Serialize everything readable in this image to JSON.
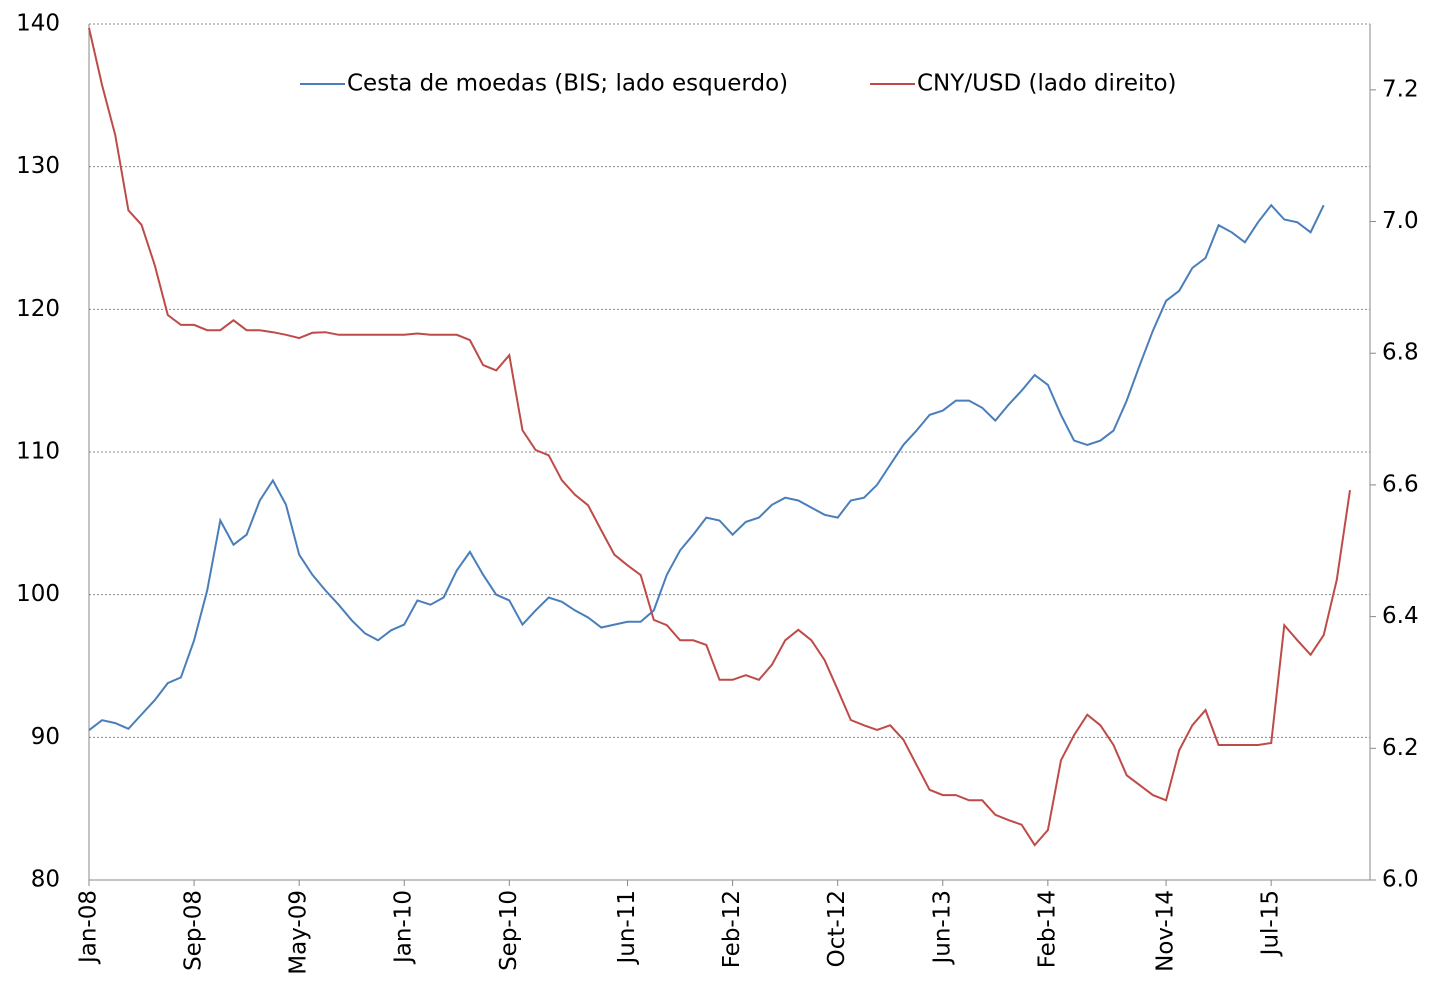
{
  "chart_data": {
    "type": "line",
    "x": [
      "Jan-08",
      "Feb-08",
      "Mar-08",
      "Apr-08",
      "May-08",
      "Jun-08",
      "Jul-08",
      "Aug-08",
      "Sep-08",
      "Oct-08",
      "Nov-08",
      "Dec-08",
      "Jan-09",
      "Feb-09",
      "Mar-09",
      "Apr-09",
      "May-09",
      "Jun-09",
      "Jul-09",
      "Aug-09",
      "Sep-09",
      "Oct-09",
      "Nov-09",
      "Dec-09",
      "Jan-10",
      "Feb-10",
      "Mar-10",
      "Apr-10",
      "May-10",
      "Jun-10",
      "Jul-10",
      "Aug-10",
      "Sep-10",
      "Oct-10",
      "Nov-10",
      "Dec-10",
      "Jan-11",
      "Feb-11",
      "Mar-11",
      "Apr-11",
      "May-11",
      "Jun-11",
      "Jul-11",
      "Aug-11",
      "Sep-11",
      "Oct-11",
      "Nov-11",
      "Dec-11",
      "Jan-12",
      "Feb-12",
      "Mar-12",
      "Apr-12",
      "May-12",
      "Jun-12",
      "Jul-12",
      "Aug-12",
      "Sep-12",
      "Oct-12",
      "Nov-12",
      "Dec-12",
      "Jan-13",
      "Feb-13",
      "Mar-13",
      "Apr-13",
      "May-13",
      "Jun-13",
      "Jul-13",
      "Aug-13",
      "Sep-13",
      "Oct-13",
      "Nov-13",
      "Dec-13",
      "Jan-14",
      "Feb-14",
      "Mar-14",
      "Apr-14",
      "May-14",
      "Jun-14",
      "Jul-14",
      "Aug-14",
      "Sep-14",
      "Oct-14",
      "Nov-14",
      "Dec-14",
      "Jan-15",
      "Feb-15",
      "Mar-15",
      "Apr-15",
      "May-15",
      "Jun-15",
      "Jul-15",
      "Aug-15",
      "Sep-15",
      "Oct-15",
      "Nov-15",
      "Dec-15",
      "Jan-16"
    ],
    "xticks": [
      "Jan-08",
      "Sep-08",
      "May-09",
      "Jan-10",
      "Sep-10",
      "Jun-11",
      "Feb-12",
      "Oct-12",
      "Jun-13",
      "Feb-14",
      "Nov-14",
      "Jul-15"
    ],
    "series": [
      {
        "name": "Cesta de moedas (BIS; lado esquerdo)",
        "color": "#4a7ebb",
        "axis": "y",
        "values": [
          90.5,
          91.2,
          91.0,
          90.6,
          91.6,
          92.6,
          93.8,
          94.2,
          96.8,
          100.3,
          105.2,
          103.5,
          104.2,
          106.6,
          108.0,
          106.3,
          102.8,
          101.4,
          100.3,
          99.3,
          98.2,
          97.3,
          96.8,
          97.5,
          97.9,
          99.6,
          99.3,
          99.8,
          101.7,
          103.0,
          101.4,
          100.0,
          99.6,
          97.9,
          98.9,
          99.8,
          99.5,
          98.9,
          98.4,
          97.7,
          97.9,
          98.1,
          98.1,
          98.9,
          101.4,
          103.1,
          104.2,
          105.4,
          105.2,
          104.2,
          105.1,
          105.4,
          106.3,
          106.8,
          106.6,
          106.1,
          105.6,
          105.4,
          106.6,
          106.8,
          107.7,
          109.1,
          110.5,
          111.5,
          112.6,
          112.9,
          113.6,
          113.6,
          113.1,
          112.2,
          113.3,
          114.3,
          115.4,
          114.7,
          112.6,
          110.8,
          110.5,
          110.8,
          111.5,
          113.6,
          116.1,
          118.5,
          120.6,
          121.3,
          122.9,
          123.6,
          125.9,
          125.4,
          124.7,
          126.1,
          127.3,
          126.3,
          126.1,
          125.4,
          127.3,
          null,
          null
        ]
      },
      {
        "name": "CNY/USD (lado direito)",
        "color": "#be4b48",
        "axis": "y2",
        "values": [
          7.294,
          7.207,
          7.131,
          7.017,
          6.995,
          6.934,
          6.858,
          6.843,
          6.843,
          6.835,
          6.835,
          6.85,
          6.835,
          6.835,
          6.832,
          6.828,
          6.823,
          6.831,
          6.832,
          6.828,
          6.828,
          6.828,
          6.828,
          6.828,
          6.828,
          6.83,
          6.828,
          6.828,
          6.828,
          6.82,
          6.782,
          6.774,
          6.797,
          6.683,
          6.653,
          6.645,
          6.607,
          6.585,
          6.569,
          6.531,
          6.494,
          6.478,
          6.463,
          6.395,
          6.387,
          6.364,
          6.364,
          6.357,
          6.304,
          6.304,
          6.311,
          6.304,
          6.327,
          6.364,
          6.38,
          6.364,
          6.334,
          6.289,
          6.243,
          6.235,
          6.228,
          6.235,
          6.213,
          6.175,
          6.137,
          6.129,
          6.129,
          6.121,
          6.121,
          6.099,
          6.091,
          6.084,
          6.053,
          6.076,
          6.182,
          6.22,
          6.251,
          6.235,
          6.205,
          6.159,
          6.144,
          6.129,
          6.121,
          6.197,
          6.235,
          6.258,
          6.205,
          6.205,
          6.205,
          6.205,
          6.208,
          6.387,
          6.364,
          6.342,
          6.372,
          6.456,
          6.592
        ]
      }
    ],
    "ylim": [
      80,
      140
    ],
    "yticks": [
      80,
      90,
      100,
      110,
      120,
      130,
      140
    ],
    "y2lim": [
      6.0,
      7.3
    ],
    "y2ticks": [
      {
        "value": 6.0,
        "label": "6.0"
      },
      6.2,
      6.4,
      6.6,
      6.8,
      {
        "value": 7.0,
        "label": "7.0"
      },
      7.2
    ],
    "grid": true
  }
}
